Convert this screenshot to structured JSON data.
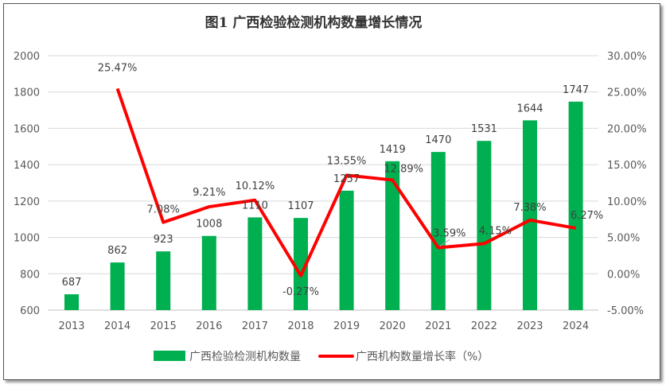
{
  "chart_data": {
    "type": "bar+line",
    "title": "图1 广西检验检测机构数量增长情况",
    "categories": [
      "2013",
      "2014",
      "2015",
      "2016",
      "2017",
      "2018",
      "2019",
      "2020",
      "2021",
      "2022",
      "2023",
      "2024"
    ],
    "series": [
      {
        "name": "广西检验检测机构数量",
        "type": "bar",
        "axis": "left",
        "color": "#00B050",
        "values": [
          687,
          862,
          923,
          1008,
          1110,
          1107,
          1257,
          1419,
          1470,
          1531,
          1644,
          1747
        ],
        "labels": [
          "687",
          "862",
          "923",
          "1008",
          "1110",
          "1107",
          "1257",
          "1419",
          "1470",
          "1531",
          "1644",
          "1747"
        ]
      },
      {
        "name": "广西机构数量增长率（%）",
        "type": "line",
        "axis": "right",
        "color": "#FF0000",
        "values": [
          null,
          25.47,
          7.08,
          9.21,
          10.12,
          -0.27,
          13.55,
          12.89,
          3.59,
          4.15,
          7.38,
          6.27
        ],
        "labels": [
          "",
          "25.47%",
          "7.08%",
          "9.21%",
          "10.12%",
          "-0.27%",
          "13.55%",
          "12.89%",
          "3.59%",
          "4.15%",
          "7.38%",
          "6.27%"
        ]
      }
    ],
    "left_axis": {
      "range": [
        600,
        2000
      ],
      "ticks": [
        "600",
        "800",
        "1000",
        "1200",
        "1400",
        "1600",
        "1800",
        "2000"
      ]
    },
    "right_axis": {
      "range": [
        -5,
        30
      ],
      "ticks": [
        "-5.00%",
        "0.00%",
        "5.00%",
        "10.00%",
        "15.00%",
        "20.00%",
        "25.00%",
        "30.00%"
      ]
    },
    "grid": "horizontal",
    "legend": "bottom"
  }
}
